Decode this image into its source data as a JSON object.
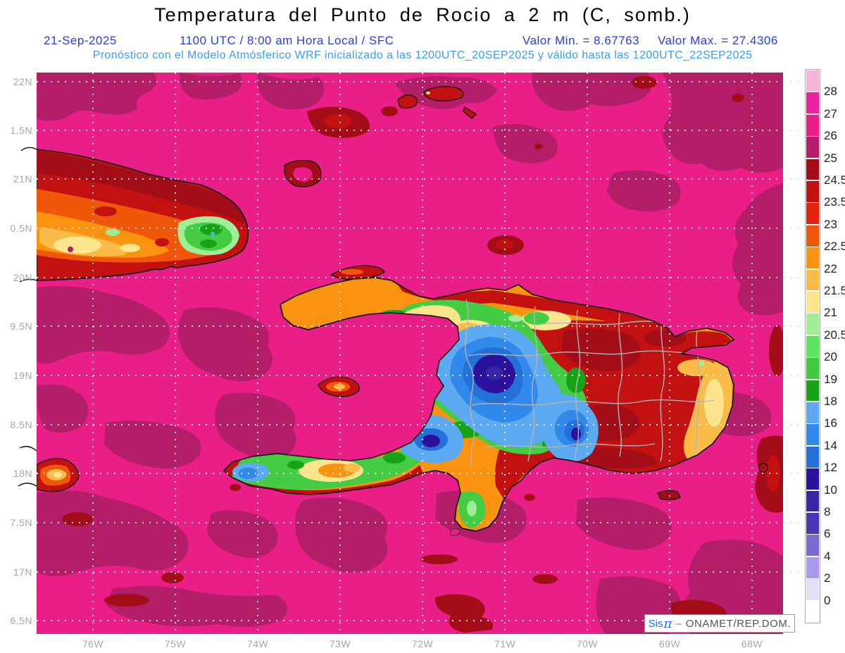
{
  "title": "Temperatura del Punto de Rocio a 2 m (C, somb.)",
  "subtitle": {
    "date": "21-Sep-2025",
    "time": "1100 UTC / 8:00 am Hora Local / SFC",
    "min_label": "Valor Min. = 8.67763",
    "max_label": "Valor Max. = 27.4306",
    "forecast": "Pronóstico con el Modelo Atmósferico WRF inicializado a las 1200UTC_20SEP2025 y válido hasta las  1200UTC_22SEP2025"
  },
  "axes": {
    "lat_labels": [
      "22N",
      "1.5N",
      "21N",
      "0.5N",
      "20N",
      "9.5N",
      "19N",
      "8.5N",
      "18N",
      "7.5N",
      "17N",
      "6.5N"
    ],
    "lon_labels": [
      "76W",
      "75W",
      "74W",
      "73W",
      "72W",
      "71W",
      "70W",
      "69W",
      "68W"
    ]
  },
  "colorbar": {
    "labels": [
      "28",
      "27",
      "26",
      "25",
      "24.5",
      "23.5",
      "23",
      "22.5",
      "22",
      "21.5",
      "21",
      "20.5",
      "20",
      "19",
      "18",
      "16",
      "14",
      "12",
      "10",
      "8",
      "6",
      "4",
      "2",
      "0"
    ],
    "colors": [
      "#f6b3d7",
      "#ea22a0",
      "#e91e87",
      "#b41e68",
      "#a30d17",
      "#c31011",
      "#e2230e",
      "#f0570b",
      "#f99310",
      "#fbbc47",
      "#fde58d",
      "#9fee97",
      "#5ee35e",
      "#3ecb3e",
      "#16a316",
      "#5baaf2",
      "#3189eb",
      "#2470d8",
      "#2c119f",
      "#3726a8",
      "#4836b6",
      "#7d6ad0",
      "#ad99ec",
      "#e4e1f7",
      "#ffffff"
    ]
  },
  "watermark": {
    "brand": "Sis",
    "pi": "π",
    "sep": "–",
    "org": "ONAMET/REP.DOM."
  },
  "palette": {
    "sea": "#e91e87",
    "sea_dark": "#b41e68",
    "red": "#c31011",
    "red_dark": "#a30d17",
    "red_orange": "#e2230e",
    "orange_deep": "#f0570b",
    "orange": "#f99310",
    "orange_light": "#fbbc47",
    "yellow_pale": "#fde58d",
    "green_light": "#9fee97",
    "green": "#44cc44",
    "green_dark": "#16a316",
    "blue_sky": "#5baaf2",
    "blue": "#3189eb",
    "blue_deep": "#2470d8",
    "indigo": "#2c119f",
    "indigo_core": "#3726a8",
    "coastline": "#111111",
    "admin_line": "#b4b4b4",
    "grid_dots": "#e3e3e3"
  }
}
